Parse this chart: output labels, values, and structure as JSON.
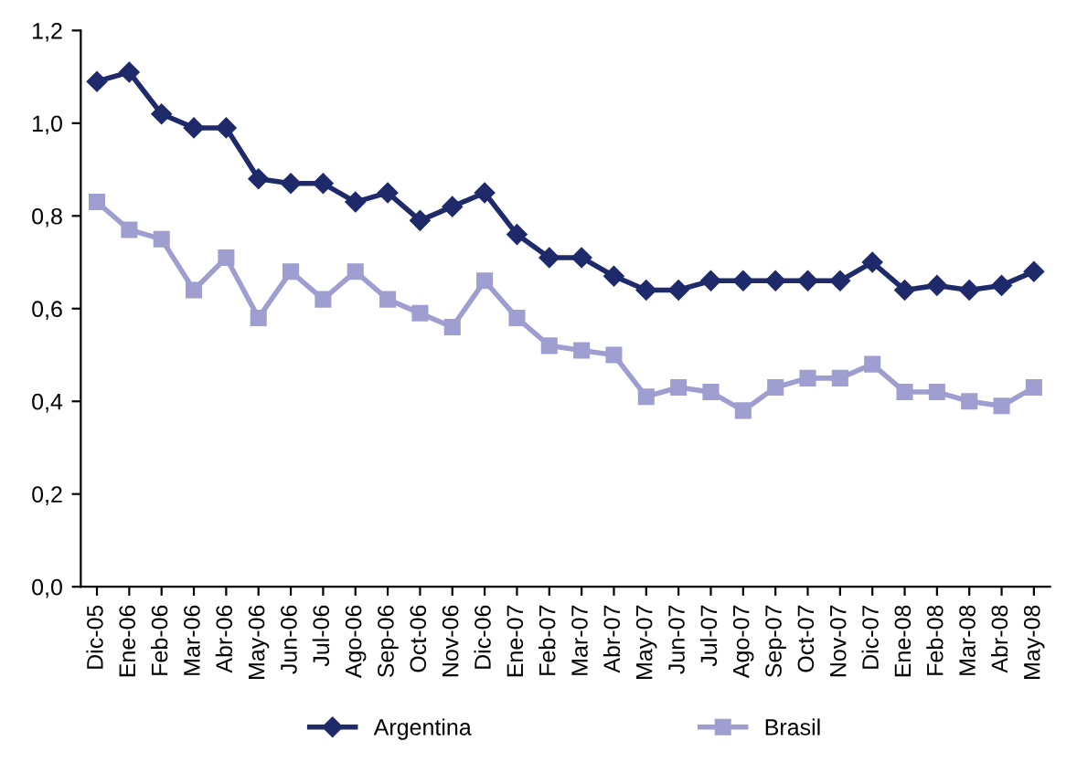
{
  "chart_data": {
    "type": "line",
    "categories": [
      "Dic-05",
      "Ene-06",
      "Feb-06",
      "Mar-06",
      "Abr-06",
      "May-06",
      "Jun-06",
      "Jul-06",
      "Ago-06",
      "Sep-06",
      "Oct-06",
      "Nov-06",
      "Dic-06",
      "Ene-07",
      "Feb-07",
      "Mar-07",
      "Abr-07",
      "May-07",
      "Jun-07",
      "Jul-07",
      "Ago-07",
      "Sep-07",
      "Oct-07",
      "Nov-07",
      "Dic-07",
      "Ene-08",
      "Feb-08",
      "Mar-08",
      "Abr-08",
      "May-08"
    ],
    "series": [
      {
        "name": "Argentina",
        "color": "#1f2a6b",
        "marker": "diamond",
        "values": [
          1.09,
          1.11,
          1.02,
          0.99,
          0.99,
          0.88,
          0.87,
          0.87,
          0.83,
          0.85,
          0.79,
          0.82,
          0.85,
          0.76,
          0.71,
          0.71,
          0.67,
          0.64,
          0.64,
          0.66,
          0.66,
          0.66,
          0.66,
          0.66,
          0.7,
          0.64,
          0.65,
          0.64,
          0.65,
          0.68
        ]
      },
      {
        "name": "Brasil",
        "color": "#9e9ed0",
        "marker": "square",
        "values": [
          0.83,
          0.77,
          0.75,
          0.64,
          0.71,
          0.58,
          0.68,
          0.62,
          0.68,
          0.62,
          0.59,
          0.56,
          0.66,
          0.58,
          0.52,
          0.51,
          0.5,
          0.41,
          0.43,
          0.42,
          0.38,
          0.43,
          0.45,
          0.45,
          0.48,
          0.42,
          0.42,
          0.4,
          0.39,
          0.43
        ]
      }
    ],
    "ylim": [
      0,
      1.2
    ],
    "yticks": [
      {
        "value": 0,
        "label": "0,0"
      },
      {
        "value": 0.2,
        "label": "0,2"
      },
      {
        "value": 0.4,
        "label": "0,4"
      },
      {
        "value": 0.6,
        "label": "0,6"
      },
      {
        "value": 0.8,
        "label": "0,8"
      },
      {
        "value": 1.0,
        "label": "1,0"
      },
      {
        "value": 1.2,
        "label": "1,2"
      }
    ],
    "grid": false,
    "legend": "bottom",
    "line_style": "solid"
  }
}
